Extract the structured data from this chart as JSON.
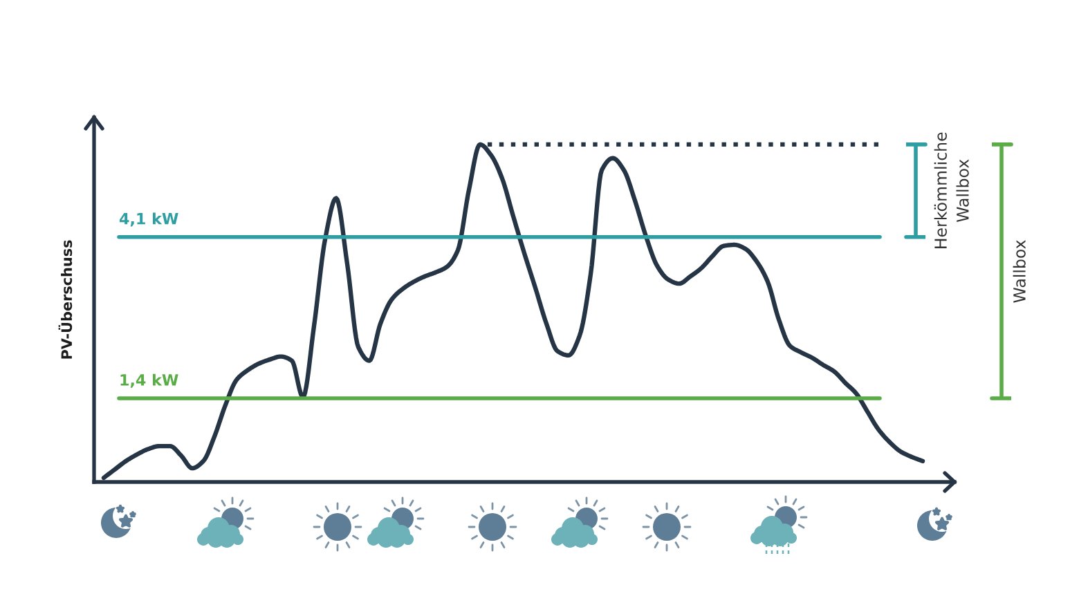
{
  "chart_data": {
    "type": "line",
    "ylabel": "PV-Überschuss",
    "categories": [
      null,
      null,
      null,
      null,
      null,
      null,
      null,
      null,
      null,
      null,
      null,
      null,
      null,
      null,
      null,
      null,
      null,
      null,
      null,
      null,
      null,
      null,
      null,
      null,
      null,
      null,
      null,
      null,
      null,
      null,
      null,
      null,
      null,
      null,
      null,
      null,
      null,
      null,
      null,
      null,
      null,
      null,
      null,
      null,
      null,
      null,
      null,
      null,
      null,
      null,
      null,
      null,
      null,
      null,
      null,
      null,
      null,
      null,
      null,
      null,
      null,
      null,
      null,
      null,
      null,
      null,
      null,
      null,
      null,
      null,
      null,
      null,
      null,
      null,
      null
    ],
    "series": [
      {
        "color": "#263545",
        "values": [
          0.07,
          0.21,
          0.35,
          0.46,
          0.55,
          0.6,
          0.6,
          0.44,
          0.23,
          0.35,
          0.76,
          1.29,
          1.71,
          1.87,
          1.98,
          2.05,
          2.1,
          2.03,
          1.42,
          2.61,
          4.06,
          4.75,
          3.65,
          2.26,
          2.03,
          2.65,
          3.05,
          3.23,
          3.35,
          3.44,
          3.51,
          3.6,
          3.88,
          4.89,
          5.65,
          5.47,
          5.08,
          4.45,
          3.83,
          3.25,
          2.65,
          2.19,
          2.12,
          2.45,
          3.48,
          5.22,
          5.42,
          5.22,
          4.71,
          4.11,
          3.62,
          3.39,
          3.32,
          3.44,
          3.58,
          3.78,
          3.95,
          3.97,
          3.9,
          3.69,
          3.35,
          2.72,
          2.28,
          2.17,
          2.08,
          1.96,
          1.85,
          1.66,
          1.48,
          1.18,
          0.88,
          0.67,
          0.51,
          0.42,
          0.35
        ]
      },
      {
        "color": "#263545",
        "line_style": "dotted",
        "values": [
          null,
          null,
          null,
          null,
          null,
          null,
          null,
          null,
          null,
          null,
          null,
          null,
          null,
          null,
          null,
          null,
          null,
          null,
          null,
          null,
          null,
          null,
          null,
          null,
          null,
          null,
          null,
          null,
          null,
          null,
          null,
          null,
          null,
          null,
          5.65,
          5.65,
          5.65,
          5.65,
          5.65,
          5.65,
          5.65,
          5.65,
          5.65,
          5.65,
          5.65,
          5.65,
          5.65,
          5.65,
          5.65,
          5.65,
          5.65,
          5.65,
          5.65,
          5.65,
          5.65,
          5.65,
          5.65,
          5.65,
          5.65,
          5.65,
          5.65,
          5.65,
          5.65,
          5.65,
          5.65,
          5.65,
          5.65,
          5.65,
          5.65,
          5.65,
          5.65,
          null,
          null,
          null,
          null
        ]
      }
    ],
    "ylim": [
      0,
      6.1
    ],
    "ref_lines": [
      {
        "axis": "y",
        "value": 4.1,
        "label": "4,1 kW",
        "color": "#2f9ea3"
      },
      {
        "axis": "y",
        "value": 1.4,
        "label": "1,4 kW",
        "color": "#5aad46"
      }
    ],
    "annotations": [
      "Herkömmliche\nWallbox",
      "Wallbox"
    ]
  }
}
